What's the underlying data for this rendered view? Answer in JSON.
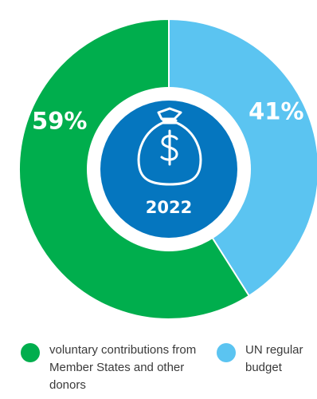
{
  "chart_data": {
    "type": "pie",
    "style": "donut",
    "center_label": "2022",
    "center_icon": "money-bag-dollar-icon",
    "slices": [
      {
        "label": "UN regular budget",
        "value": 41,
        "display": "41%",
        "color": "#5BC4F1"
      },
      {
        "label": "voluntary contributions from Member States and other donors",
        "value": 59,
        "display": "59%",
        "color": "#00AE4D"
      }
    ],
    "legend": [
      {
        "label": "voluntary contributions from Member States and other donors",
        "color": "#00AE4D"
      },
      {
        "label": "UN regular budget",
        "color": "#5BC4F1"
      }
    ],
    "colors": {
      "center_fill": "#0576BF",
      "gap": "#ffffff"
    }
  }
}
